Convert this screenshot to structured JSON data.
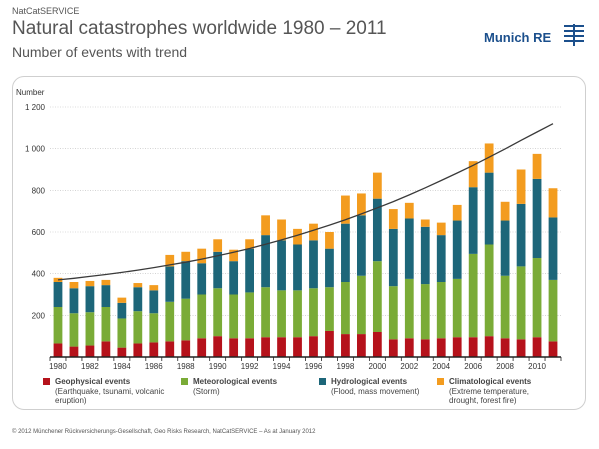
{
  "header": {
    "source": "NatCatSERVICE",
    "title": "Natural catastrophes worldwide 1980 – 2011",
    "subtitle": "Number of events with trend",
    "logo_text": "Munich RE"
  },
  "footer": {
    "text": "© 2012 Münchener Rückversicherungs-Gesellschaft, Geo Risks Research, NatCatSERVICE – As at January 2012"
  },
  "colors": {
    "geophysical": "#b5121b",
    "meteorological": "#7aab37",
    "hydrological": "#1d6679",
    "climatological": "#f39c1f",
    "trend": "#3a3a3a",
    "grid": "#bbbbbb"
  },
  "legend": [
    {
      "key": "geophysical",
      "title": "Geophysical events",
      "desc": "(Earthquake, tsunami, volcanic eruption)"
    },
    {
      "key": "meteorological",
      "title": "Meteorological events",
      "desc": "(Storm)"
    },
    {
      "key": "hydrological",
      "title": "Hydrological events",
      "desc": "(Flood, mass movement)"
    },
    {
      "key": "climatological",
      "title": "Climatological events",
      "desc": "(Extreme temperature, drought, forest fire)"
    }
  ],
  "chart_data": {
    "type": "bar",
    "stacked": true,
    "ylabel": "Number",
    "ylim": [
      0,
      1200
    ],
    "yticks": [
      200,
      400,
      600,
      800,
      1000,
      1200
    ],
    "ytick_labels": [
      "200",
      "400",
      "600",
      "800",
      "1 000",
      "1 200"
    ],
    "grid": true,
    "x": [
      1980,
      1981,
      1982,
      1983,
      1984,
      1985,
      1986,
      1987,
      1988,
      1989,
      1990,
      1991,
      1992,
      1993,
      1994,
      1995,
      1996,
      1997,
      1998,
      1999,
      2000,
      2001,
      2002,
      2003,
      2004,
      2005,
      2006,
      2007,
      2008,
      2009,
      2010,
      2011
    ],
    "xtick_labels": [
      "1980",
      "1982",
      "1984",
      "1986",
      "1988",
      "1990",
      "1992",
      "1994",
      "1996",
      "1998",
      "2000",
      "2002",
      "2004",
      "2006",
      "2008",
      "2010"
    ],
    "series": [
      {
        "name": "Geophysical events",
        "key": "geophysical",
        "values": [
          65,
          50,
          55,
          75,
          45,
          65,
          70,
          75,
          80,
          90,
          100,
          90,
          90,
          95,
          95,
          95,
          100,
          125,
          110,
          110,
          120,
          85,
          90,
          85,
          90,
          95,
          95,
          100,
          90,
          85,
          95,
          75
        ]
      },
      {
        "name": "Meteorological events",
        "key": "meteorological",
        "values": [
          175,
          160,
          160,
          165,
          140,
          155,
          140,
          190,
          200,
          210,
          230,
          210,
          220,
          240,
          225,
          225,
          230,
          210,
          250,
          280,
          340,
          255,
          285,
          265,
          270,
          280,
          400,
          440,
          300,
          350,
          380,
          295
        ]
      },
      {
        "name": "Hydrological events",
        "key": "hydrological",
        "values": [
          120,
          120,
          125,
          105,
          75,
          115,
          110,
          170,
          180,
          150,
          175,
          160,
          210,
          250,
          240,
          220,
          230,
          185,
          280,
          290,
          300,
          275,
          290,
          275,
          225,
          280,
          320,
          345,
          265,
          300,
          380,
          300
        ]
      },
      {
        "name": "Climatological events",
        "key": "climatological",
        "values": [
          20,
          30,
          25,
          25,
          25,
          20,
          25,
          55,
          45,
          70,
          60,
          55,
          45,
          95,
          100,
          75,
          80,
          80,
          135,
          105,
          125,
          95,
          75,
          35,
          60,
          75,
          125,
          140,
          90,
          165,
          120,
          140
        ]
      }
    ],
    "trend": [
      370,
      378,
      387,
      396,
      406,
      417,
      429,
      442,
      455,
      470,
      486,
      503,
      521,
      541,
      562,
      584,
      608,
      633,
      659,
      687,
      716,
      746,
      778,
      812,
      847,
      883,
      920,
      959,
      999,
      1040,
      1080,
      1120
    ]
  }
}
